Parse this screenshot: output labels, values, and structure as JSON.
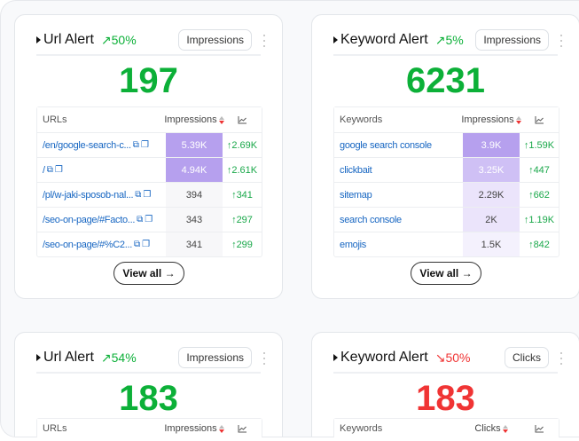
{
  "colors": {
    "up": "#0cb038",
    "down": "#f03434",
    "link": "#1766c2",
    "heat_strong": "#b6a0ee",
    "heat_mid": "#cfc0f5",
    "heat_light": "#ebe4fb",
    "heat_faint": "#f4f1fd"
  },
  "cards": [
    {
      "title": "Url Alert",
      "trend": "50%",
      "trend_dir": "up",
      "metric": "Impressions",
      "value": "197",
      "col1": "URLs",
      "col2": "Impressions",
      "chart_icon": "chart-line-icon",
      "rows": [
        {
          "label": "/en/google-search-c...",
          "v": "5.39K",
          "d": "2.69K",
          "heat": 1
        },
        {
          "label": "/",
          "v": "4.94K",
          "d": "2.61K",
          "heat": 0.92
        },
        {
          "label": "/pl/w-jaki-sposob-nal...",
          "v": "394",
          "d": "341",
          "heat": 0.07
        },
        {
          "label": "/seo-on-page/#Facto...",
          "v": "343",
          "d": "297",
          "heat": 0.06
        },
        {
          "label": "/seo-on-page/#%C2...",
          "v": "341",
          "d": "299",
          "heat": 0.06
        }
      ],
      "view_all": "View all",
      "links": true
    },
    {
      "title": "Keyword Alert",
      "trend": "5%",
      "trend_dir": "up",
      "metric": "Impressions",
      "value": "6231",
      "col1": "Keywords",
      "col2": "Impressions",
      "chart_icon": "chart-line-icon",
      "rows": [
        {
          "label": "google search console",
          "v": "3.9K",
          "d": "1.59K",
          "heat": 1
        },
        {
          "label": "clickbait",
          "v": "3.25K",
          "d": "447",
          "heat": 0.83
        },
        {
          "label": "sitemap",
          "v": "2.29K",
          "d": "662",
          "heat": 0.59
        },
        {
          "label": "search console",
          "v": "2K",
          "d": "1.19K",
          "heat": 0.51
        },
        {
          "label": "emojis",
          "v": "1.5K",
          "d": "842",
          "heat": 0.38
        }
      ],
      "view_all": "View all",
      "links": false
    },
    {
      "title": "Url Alert",
      "trend": "54%",
      "trend_dir": "up",
      "metric": "Impressions",
      "value": "183",
      "col1": "URLs",
      "col2": "Impressions",
      "rows": []
    },
    {
      "title": "Keyword Alert",
      "trend": "50%",
      "trend_dir": "down",
      "metric": "Clicks",
      "value": "183",
      "col1": "Keywords",
      "col2": "Clicks",
      "rows": []
    }
  ]
}
